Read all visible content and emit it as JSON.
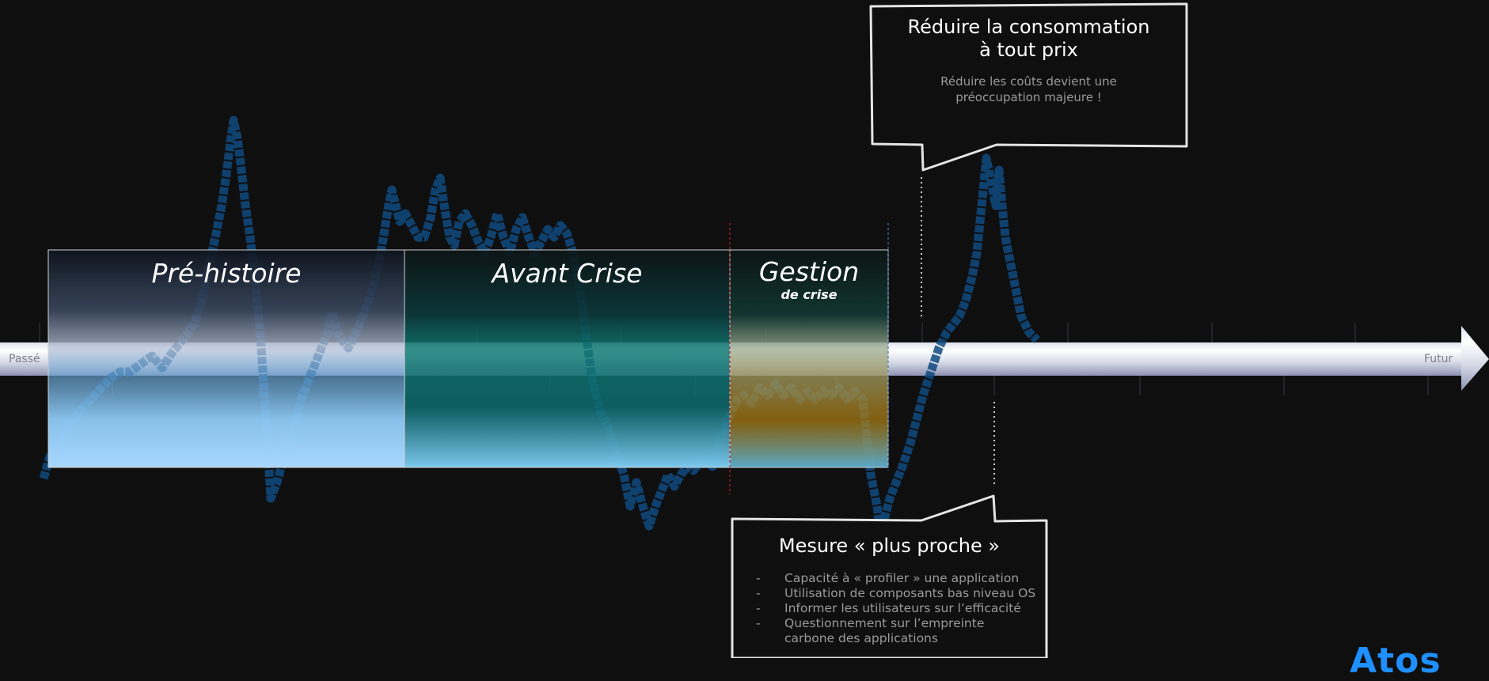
{
  "timeline": {
    "start_label": "Passé",
    "end_label": "Futur"
  },
  "eras": [
    {
      "title": "Pré-histoire",
      "subtitle": ""
    },
    {
      "title": "Avant Crise",
      "subtitle": ""
    },
    {
      "title": "Gestion",
      "subtitle": "de crise"
    }
  ],
  "callout_top": {
    "heading_line1": "Réduire la consommation",
    "heading_line2": "à tout prix",
    "text_line1": "Réduire les coûts devient une",
    "text_line2": "préoccupation majeure !"
  },
  "callout_bottom": {
    "heading": "Mesure « plus proche »",
    "bullets": [
      {
        "dash": "-",
        "lines": [
          "Capacité à « profiler » une application"
        ]
      },
      {
        "dash": "-",
        "lines": [
          "Utilisation de composants bas niveau OS"
        ]
      },
      {
        "dash": "-",
        "lines": [
          "Informer les utilisateurs sur l’efficacité"
        ]
      },
      {
        "dash": "-",
        "lines": [
          "Questionnement sur l’empreinte",
          "carbone des applications"
        ]
      }
    ]
  },
  "logo": {
    "text": "Atos"
  },
  "colors": {
    "background": "#0f0f10",
    "squiggle": "#0f4a80",
    "arrow_light": "#f4f5fa",
    "arrow_mid": "#b6bad0",
    "era_light_blue": "#8ecaf5",
    "era_teal": "#0f7a74",
    "era_amber": "#a97a10",
    "logo": "#1e90ff"
  }
}
